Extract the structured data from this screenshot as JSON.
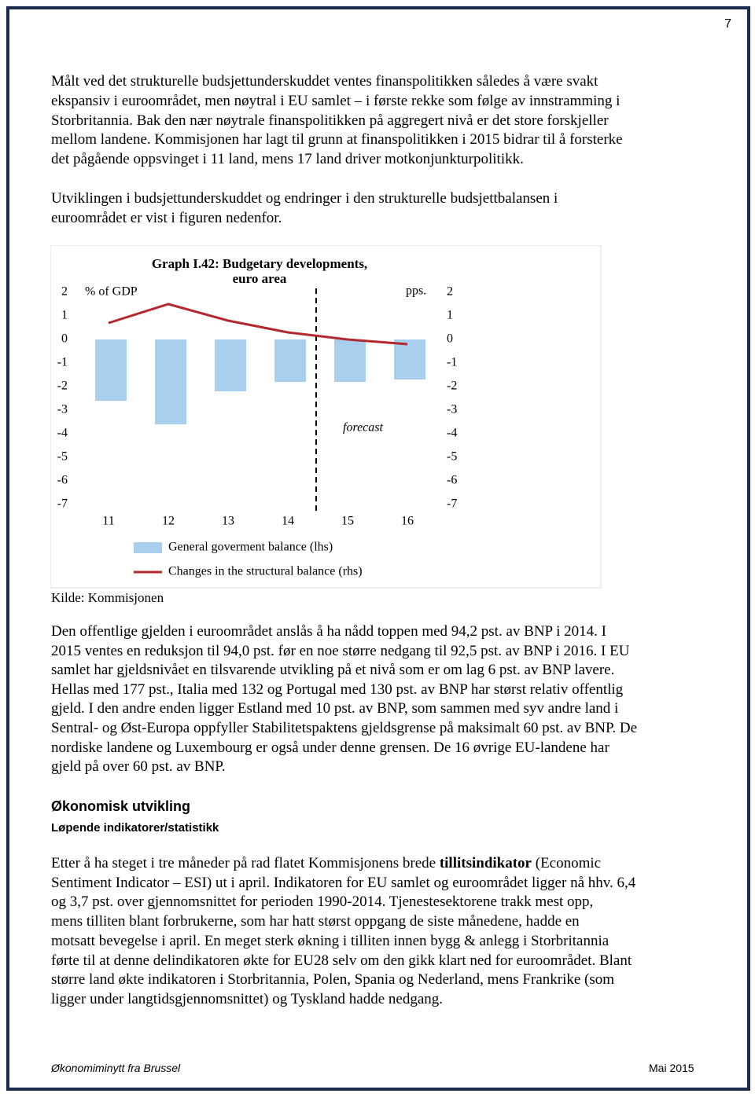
{
  "page_number": "7",
  "intro_paragraphs": [
    [
      "Målt ved det strukturelle budsjettunderskuddet ventes finanspolitikken således å være svakt",
      "ekspansiv i euroområdet, men nøytral i EU samlet – i første rekke som følge av innstramming i",
      "Storbritannia. Bak den nær nøytrale finanspolitikken på aggregert nivå er det store forskjeller",
      "mellom landene. Kommisjonen har lagt til grunn at finanspolitikken i 2015 bidrar til å forsterke",
      "det pågående oppsvinget i 11 land, mens 17 land driver motkonjunkturpolitikk."
    ],
    [
      "Utviklingen i budsjettunderskuddet og endringer i den strukturelle budsjettbalansen i",
      "euroområdet er vist i figuren nedenfor."
    ]
  ],
  "chart_data": {
    "type": "bar",
    "title": [
      "Graph I.42: Budgetary developments,",
      "euro area"
    ],
    "y_label": "% of GDP",
    "y2_label": "pps.",
    "annotation": "forecast",
    "categories": [
      "11",
      "12",
      "13",
      "14",
      "15",
      "16"
    ],
    "series": [
      {
        "name": "General goverment balance (lhs)",
        "type": "bar",
        "color": "#a8cfee",
        "values": [
          -2.6,
          -3.6,
          -2.2,
          -1.8,
          -1.8,
          -1.7
        ]
      },
      {
        "name": "Changes in the structural balance (rhs)",
        "type": "line",
        "axis": "y2",
        "color": "#b3282d",
        "values": [
          0.7,
          1.5,
          0.8,
          0.3,
          0.0,
          -0.2
        ]
      }
    ],
    "ylim": [
      2,
      -7
    ],
    "yticks": [
      2,
      1,
      0,
      -1,
      -2,
      -3,
      -4,
      -5,
      -6,
      -7
    ],
    "y2lim": [
      2,
      -7
    ],
    "y2ticks": [
      2,
      1,
      0,
      -1,
      -2,
      -3,
      -4,
      -5,
      -6,
      -7
    ]
  },
  "source": "Kilde: Kommisjonen",
  "debt_paragraph": [
    "Den offentlige gjelden i euroområdet anslås å ha nådd toppen med 94,2 pst. av BNP i 2014. I",
    "2015 ventes en reduksjon til 94,0 pst. før en noe større nedgang til 92,5 pst. av BNP i 2016. I EU",
    "samlet har gjeldsnivået en tilsvarende utvikling på et nivå som er om lag 6 pst. av BNP lavere.",
    "Hellas med 177 pst., Italia med 132 og Portugal med 130 pst. av BNP har størst relativ offentlig",
    "gjeld. I den andre enden ligger Estland med 10 pst. av BNP, som sammen med syv andre land i",
    "Sentral- og Øst-Europa oppfyller Stabilitetspaktens gjeldsgrense på maksimalt 60 pst. av BNP. De",
    "nordiske landene og Luxembourg er også under denne grensen. De 16 øvrige EU-landene har",
    "gjeld på over 60 pst. av BNP."
  ],
  "heading": "Økonomisk utvikling",
  "subheading": "Løpende indikatorer/statistikk",
  "esi_paragraph": [
    [
      "Etter å ha steget i tre måneder på rad flatet Kommisjonens brede ",
      "tillitsindikator",
      " (Economic"
    ],
    "Sentiment Indicator – ESI) ut i april. Indikatoren for EU samlet og euroområdet ligger nå hhv. 6,4",
    "og 3,7 pst. over gjennomsnittet for perioden 1990-2014. Tjenestesektorene trakk mest opp,",
    "mens tilliten blant forbrukerne, som har hatt størst oppgang de siste månedene, hadde en",
    "motsatt bevegelse i april. En meget sterk økning i tilliten innen bygg & anlegg i Storbritannia",
    "førte til at denne delindikatoren økte for EU28 selv om den gikk klart ned for euroområdet. Blant",
    "større land økte indikatoren i Storbritannia, Polen, Spania og Nederland, mens Frankrike (som",
    "ligger under langtidsgjennomsnittet) og Tyskland hadde nedgang."
  ],
  "footer": {
    "left": "Økonomiminytt fra Brussel",
    "right": "Mai 2015"
  }
}
